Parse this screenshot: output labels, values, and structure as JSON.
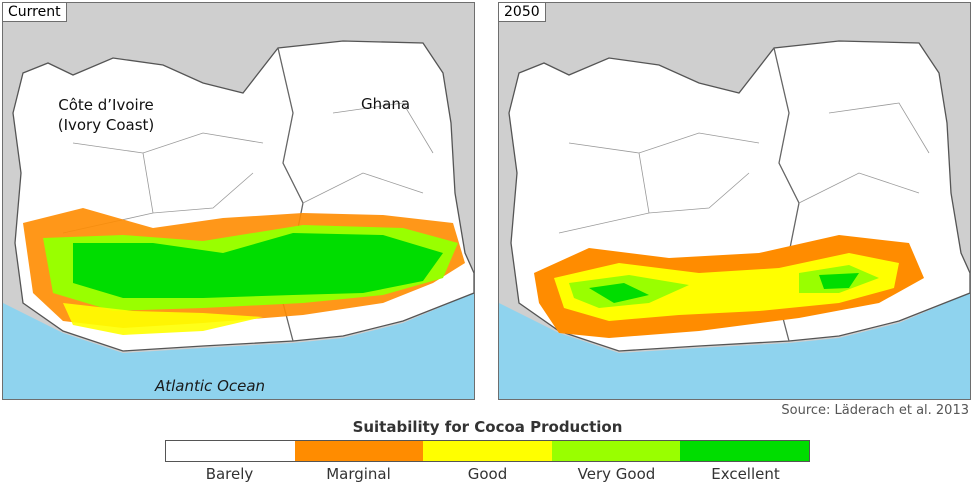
{
  "panels": [
    {
      "label": "Current"
    },
    {
      "label": "2050"
    }
  ],
  "map_labels": {
    "country_left_line1": "Côte d’Ivoire",
    "country_left_line2": "(Ivory Coast)",
    "country_right": "Ghana",
    "ocean": "Atlantic Ocean"
  },
  "source": "Source: Läderach et al. 2013",
  "legend": {
    "title": "Suitability for Cocoa Production",
    "classes": [
      {
        "label": "Barely",
        "color": "#ffffff"
      },
      {
        "label": "Marginal",
        "color": "#ff8c00"
      },
      {
        "label": "Good",
        "color": "#ffff00"
      },
      {
        "label": "Very Good",
        "color": "#99ff00"
      },
      {
        "label": "Excellent",
        "color": "#00dd00"
      }
    ]
  },
  "colors": {
    "ocean": "#8fd3ee",
    "outside": "#cfcfcf",
    "land": "#ffffff",
    "border": "#555555"
  }
}
